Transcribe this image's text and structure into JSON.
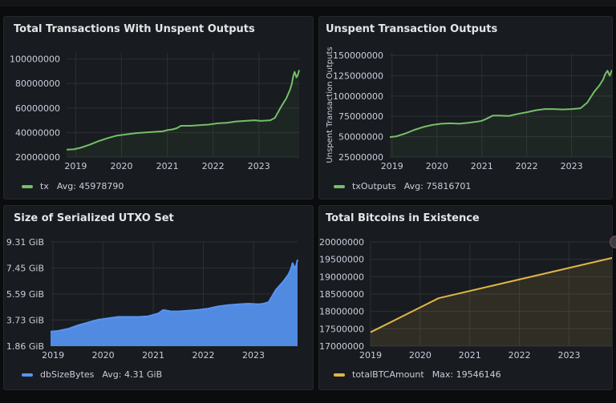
{
  "colors": {
    "green": "#73bf69",
    "blue": "#5794f2",
    "yellow": "#e0b547"
  },
  "panels": [
    {
      "title": "Total Transactions With Unspent Outputs",
      "series_name": "tx",
      "stat_label": "Avg: 45978790",
      "color": "#73bf69",
      "chart_data": {
        "type": "area",
        "title": "Total Transactions With Unspent Outputs",
        "xlabel": "",
        "ylabel": "",
        "x_tick_labels": [
          "2019",
          "2020",
          "2021",
          "2022",
          "2023"
        ],
        "x_ticks": [
          2019,
          2020,
          2021,
          2022,
          2023
        ],
        "y_tick_labels": [
          "20000000",
          "40000000",
          "60000000",
          "80000000",
          "100000000"
        ],
        "y_ticks": [
          20000000,
          40000000,
          60000000,
          80000000,
          100000000
        ],
        "xlim": [
          2018.8,
          2023.88
        ],
        "ylim": [
          20000000,
          105000000
        ],
        "x": [
          2018.8,
          2018.95,
          2019.1,
          2019.3,
          2019.5,
          2019.7,
          2019.9,
          2020.1,
          2020.3,
          2020.5,
          2020.7,
          2020.9,
          2021.0,
          2021.1,
          2021.2,
          2021.3,
          2021.5,
          2021.7,
          2021.9,
          2022.1,
          2022.3,
          2022.5,
          2022.7,
          2022.9,
          2023.05,
          2023.25,
          2023.35,
          2023.5,
          2023.6,
          2023.68,
          2023.72,
          2023.75,
          2023.78,
          2023.82,
          2023.85,
          2023.88
        ],
        "series": [
          {
            "name": "tx",
            "values": [
              26000000,
              26300000,
              27500000,
              30000000,
              33000000,
              35500000,
              37500000,
              38500000,
              39500000,
              40000000,
              40500000,
              41000000,
              42000000,
              42500000,
              43500000,
              45500000,
              45500000,
              46000000,
              46500000,
              47500000,
              48000000,
              49000000,
              49500000,
              50000000,
              49500000,
              50000000,
              52000000,
              62000000,
              68000000,
              75000000,
              80000000,
              86000000,
              89500000,
              85000000,
              87000000,
              91000000
            ]
          }
        ]
      }
    },
    {
      "title": "Unspent Transaction Outputs",
      "series_name": "txOutputs",
      "stat_label": "Avg: 75816701",
      "color": "#73bf69",
      "chart_data": {
        "type": "area",
        "title": "Unspent Transaction Outputs",
        "xlabel": "",
        "ylabel": "Unspent Transaction Outputs",
        "x_tick_labels": [
          "2019",
          "2020",
          "2021",
          "2022",
          "2023"
        ],
        "x_ticks": [
          2019,
          2020,
          2021,
          2022,
          2023
        ],
        "y_tick_labels": [
          "25000000",
          "50000000",
          "75000000",
          "100000000",
          "125000000",
          "150000000"
        ],
        "y_ticks": [
          25000000,
          50000000,
          75000000,
          100000000,
          125000000,
          150000000
        ],
        "xlim": [
          2018.95,
          2023.9
        ],
        "ylim": [
          25000000,
          153000000
        ],
        "x": [
          2018.95,
          2019.1,
          2019.3,
          2019.5,
          2019.7,
          2019.9,
          2020.1,
          2020.3,
          2020.5,
          2020.7,
          2020.9,
          2021.0,
          2021.1,
          2021.25,
          2021.4,
          2021.6,
          2021.8,
          2022.0,
          2022.2,
          2022.4,
          2022.6,
          2022.8,
          2023.0,
          2023.2,
          2023.35,
          2023.5,
          2023.62,
          2023.7,
          2023.75,
          2023.8,
          2023.85,
          2023.9
        ],
        "series": [
          {
            "name": "txOutputs",
            "values": [
              49500000,
              50500000,
              54000000,
              58500000,
              62000000,
              64500000,
              66000000,
              66500000,
              66000000,
              67000000,
              68500000,
              69500000,
              72000000,
              76000000,
              76000000,
              75500000,
              78000000,
              80000000,
              82500000,
              84000000,
              84000000,
              83500000,
              84000000,
              85000000,
              92000000,
              105000000,
              113000000,
              120000000,
              127000000,
              131000000,
              125000000,
              132000000
            ]
          }
        ]
      }
    },
    {
      "title": "Size of Serialized UTXO Set",
      "series_name": "dbSizeBytes",
      "stat_label": "Avg: 4.31 GiB",
      "color": "#5794f2",
      "chart_data": {
        "type": "area",
        "title": "Size of Serialized UTXO Set",
        "xlabel": "",
        "ylabel": "",
        "x_tick_labels": [
          "2019",
          "2020",
          "2021",
          "2022",
          "2023"
        ],
        "x_ticks": [
          2019,
          2020,
          2021,
          2022,
          2023
        ],
        "y_tick_labels": [
          "1.86 GiB",
          "3.73 GiB",
          "5.59 GiB",
          "7.45 GiB",
          "9.31 GiB"
        ],
        "y_ticks": [
          1.86,
          3.73,
          5.59,
          7.45,
          9.31
        ],
        "xlim": [
          2018.95,
          2023.88
        ],
        "ylim": [
          1.86,
          9.31
        ],
        "x": [
          2018.95,
          2019.1,
          2019.3,
          2019.5,
          2019.7,
          2019.9,
          2020.1,
          2020.3,
          2020.5,
          2020.7,
          2020.9,
          2021.0,
          2021.1,
          2021.2,
          2021.35,
          2021.5,
          2021.7,
          2021.9,
          2022.1,
          2022.3,
          2022.5,
          2022.7,
          2022.9,
          2023.1,
          2023.2,
          2023.3,
          2023.45,
          2023.6,
          2023.7,
          2023.75,
          2023.78,
          2023.82,
          2023.85,
          2023.88
        ],
        "series": [
          {
            "name": "dbSizeBytes",
            "values": [
              2.9,
              2.95,
              3.1,
              3.35,
              3.55,
              3.75,
              3.85,
              3.95,
              3.95,
              3.95,
              4.0,
              4.1,
              4.2,
              4.45,
              4.35,
              4.35,
              4.4,
              4.45,
              4.55,
              4.7,
              4.8,
              4.85,
              4.9,
              4.85,
              4.9,
              5.0,
              5.9,
              6.5,
              7.0,
              7.4,
              7.8,
              7.45,
              7.6,
              8.05
            ]
          }
        ]
      }
    },
    {
      "title": "Total Bitcoins in Existence",
      "series_name": "totalBTCAmount",
      "stat_label": "Max: 19546146",
      "color": "#e0b547",
      "chart_data": {
        "type": "area",
        "title": "Total Bitcoins in Existence",
        "xlabel": "",
        "ylabel": "",
        "x_tick_labels": [
          "2019",
          "2020",
          "2021",
          "2022",
          "2023"
        ],
        "x_ticks": [
          2019,
          2020,
          2021,
          2022,
          2023
        ],
        "y_tick_labels": [
          "17000000",
          "17500000",
          "18000000",
          "18500000",
          "19000000",
          "19500000",
          "20000000"
        ],
        "y_ticks": [
          17000000,
          17500000,
          18000000,
          18500000,
          19000000,
          19500000,
          20000000
        ],
        "xlim": [
          2019.0,
          2023.88
        ],
        "ylim": [
          17000000,
          20000000
        ],
        "x": [
          2019.0,
          2020.37,
          2023.88
        ],
        "series": [
          {
            "name": "totalBTCAmount",
            "values": [
              17400000,
              18380000,
              19546146
            ]
          }
        ]
      }
    }
  ]
}
